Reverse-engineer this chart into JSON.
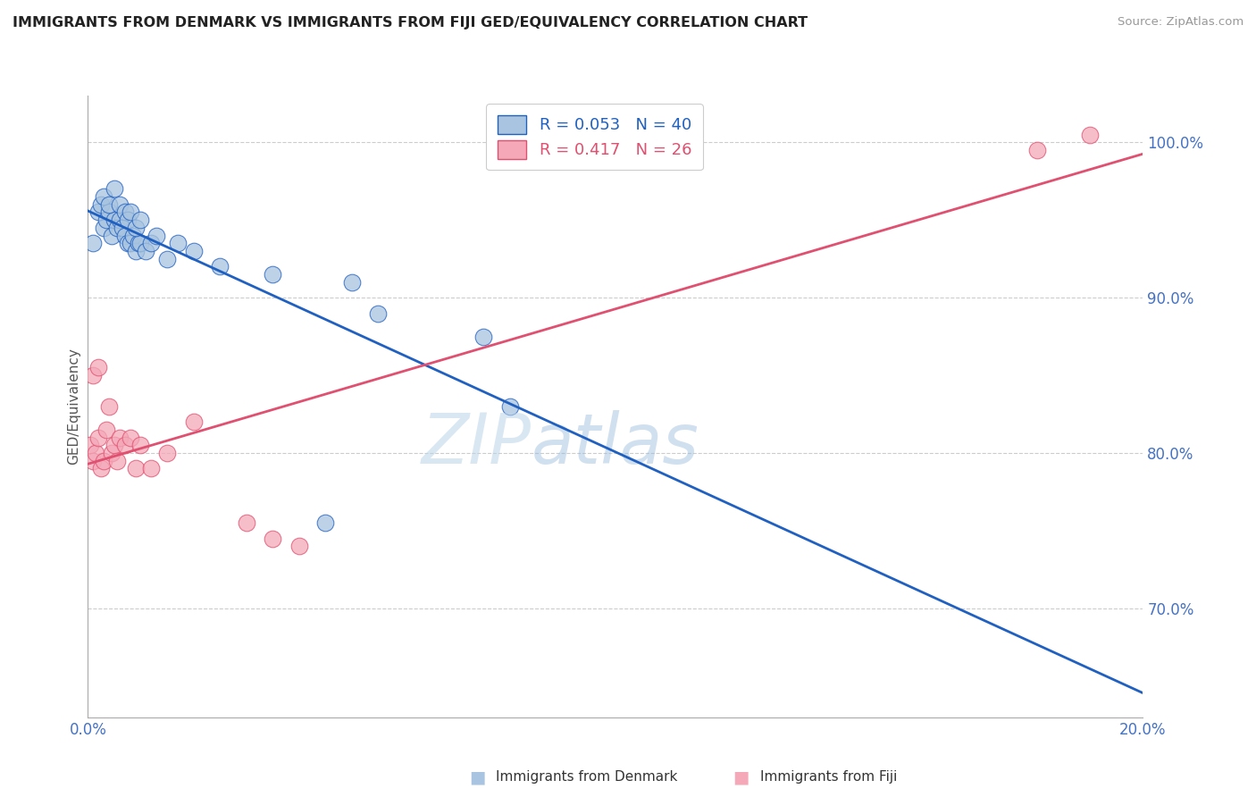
{
  "title": "IMMIGRANTS FROM DENMARK VS IMMIGRANTS FROM FIJI GED/EQUIVALENCY CORRELATION CHART",
  "source": "Source: ZipAtlas.com",
  "ylabel": "GED/Equivalency",
  "yticks": [
    70.0,
    80.0,
    90.0,
    100.0
  ],
  "ytick_labels": [
    "70.0%",
    "80.0%",
    "90.0%",
    "100.0%"
  ],
  "xmin": 0.0,
  "xmax": 20.0,
  "ymin": 63.0,
  "ymax": 103.0,
  "denmark_color": "#a8c4e0",
  "fiji_color": "#f4a8b8",
  "denmark_line_color": "#2060c0",
  "fiji_line_color": "#e05070",
  "denmark_R": 0.053,
  "denmark_N": 40,
  "fiji_R": 0.417,
  "fiji_N": 26,
  "watermark_zip": "ZIP",
  "watermark_atlas": "atlas",
  "grid_color": "#cccccc",
  "tick_color": "#4472c4",
  "denmark_scatter_x": [
    0.1,
    0.2,
    0.25,
    0.3,
    0.35,
    0.4,
    0.45,
    0.5,
    0.55,
    0.6,
    0.65,
    0.7,
    0.75,
    0.8,
    0.85,
    0.9,
    0.95,
    1.0,
    1.1,
    1.2,
    1.3,
    1.5,
    1.7,
    2.0,
    0.3,
    0.4,
    0.5,
    0.6,
    0.7,
    0.75,
    0.8,
    0.9,
    1.0,
    2.5,
    3.5,
    5.0,
    5.5,
    7.5,
    8.0,
    4.5
  ],
  "denmark_scatter_y": [
    93.5,
    95.5,
    96.0,
    94.5,
    95.0,
    95.5,
    94.0,
    95.0,
    94.5,
    95.0,
    94.5,
    94.0,
    93.5,
    93.5,
    94.0,
    93.0,
    93.5,
    93.5,
    93.0,
    93.5,
    94.0,
    92.5,
    93.5,
    93.0,
    96.5,
    96.0,
    97.0,
    96.0,
    95.5,
    95.0,
    95.5,
    94.5,
    95.0,
    92.0,
    91.5,
    91.0,
    89.0,
    87.5,
    83.0,
    75.5
  ],
  "fiji_scatter_x": [
    0.05,
    0.1,
    0.15,
    0.2,
    0.25,
    0.3,
    0.35,
    0.4,
    0.45,
    0.5,
    0.55,
    0.6,
    0.7,
    0.8,
    0.9,
    1.0,
    1.2,
    1.5,
    2.0,
    3.0,
    3.5,
    4.0,
    0.1,
    0.2,
    18.0,
    19.0
  ],
  "fiji_scatter_y": [
    80.5,
    79.5,
    80.0,
    81.0,
    79.0,
    79.5,
    81.5,
    83.0,
    80.0,
    80.5,
    79.5,
    81.0,
    80.5,
    81.0,
    79.0,
    80.5,
    79.0,
    80.0,
    82.0,
    75.5,
    74.5,
    74.0,
    85.0,
    85.5,
    99.5,
    100.5
  ]
}
